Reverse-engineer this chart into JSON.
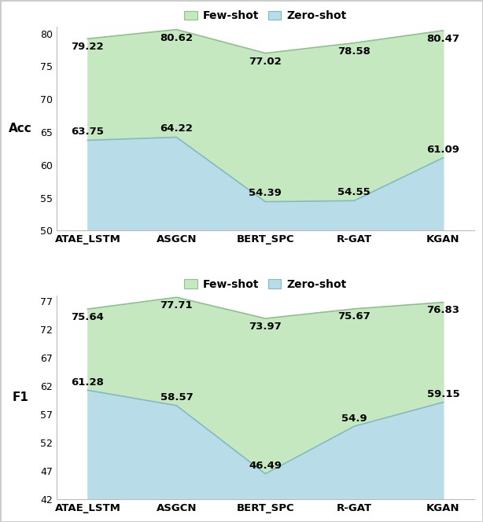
{
  "categories": [
    "ATAE_LSTM",
    "ASGCN",
    "BERT_SPC",
    "R-GAT",
    "KGAN"
  ],
  "acc_fewshot": [
    79.22,
    80.62,
    77.02,
    78.58,
    80.47
  ],
  "acc_zeroshot": [
    63.75,
    64.22,
    54.39,
    54.55,
    61.09
  ],
  "f1_fewshot": [
    75.64,
    77.71,
    73.97,
    75.67,
    76.83
  ],
  "f1_zeroshot": [
    61.28,
    58.57,
    46.49,
    54.9,
    59.15
  ],
  "acc_ylim": [
    50,
    81
  ],
  "acc_yticks": [
    50,
    55,
    60,
    65,
    70,
    75,
    80
  ],
  "f1_ylim": [
    42,
    78
  ],
  "f1_yticks": [
    42,
    47,
    52,
    57,
    62,
    67,
    72,
    77
  ],
  "fewshot_color": "#c5e8c0",
  "zeroshot_color": "#b8dce8",
  "fewshot_line_color": "#90c090",
  "zeroshot_line_color": "#80b8cc",
  "legend_fewshot": "Few-shot",
  "legend_zeroshot": "Zero-shot",
  "acc_ylabel": "Acc",
  "f1_ylabel": "F1",
  "annot_fontsize": 9.5,
  "tick_fontsize": 9,
  "xlabel_fontsize": 9.5,
  "ylabel_fontsize": 11,
  "legend_fontsize": 10,
  "background_color": "#ffffff",
  "figure_edge_color": "#cccccc"
}
